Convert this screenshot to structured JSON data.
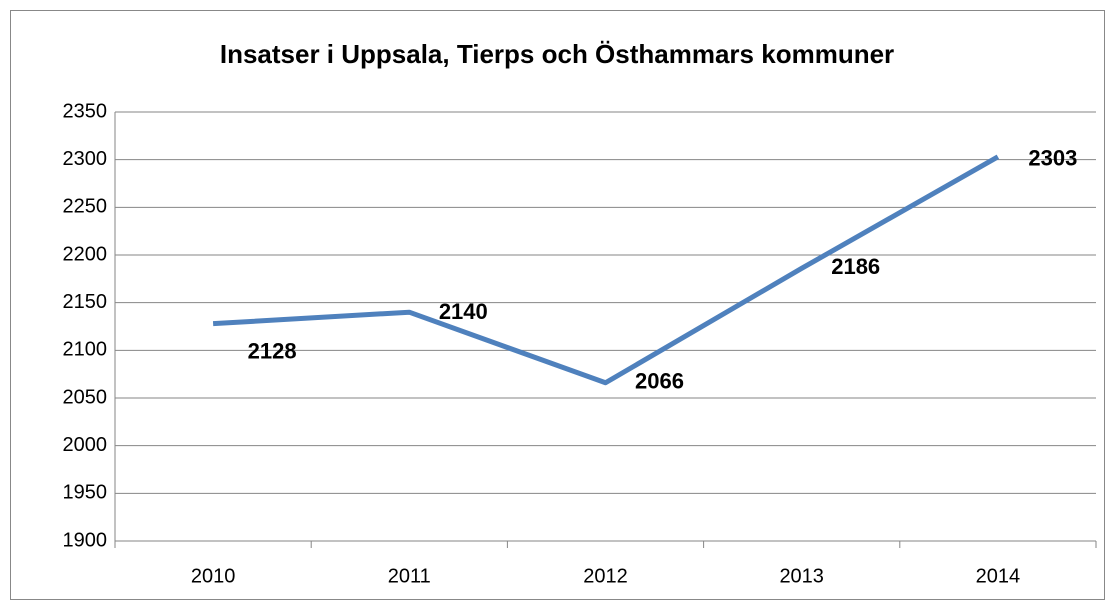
{
  "chart_data": {
    "type": "line",
    "title": "Insatser i Uppsala, Tierps och Östhammars kommuner",
    "categories": [
      "2010",
      "2011",
      "2012",
      "2013",
      "2014"
    ],
    "values": [
      2128,
      2140,
      2066,
      2186,
      2303
    ],
    "color": "#4f81bd",
    "ylim": [
      1900,
      2350
    ],
    "yticks": [
      1900,
      1950,
      2000,
      2050,
      2100,
      2150,
      2200,
      2250,
      2300,
      2350
    ],
    "grid": true
  }
}
